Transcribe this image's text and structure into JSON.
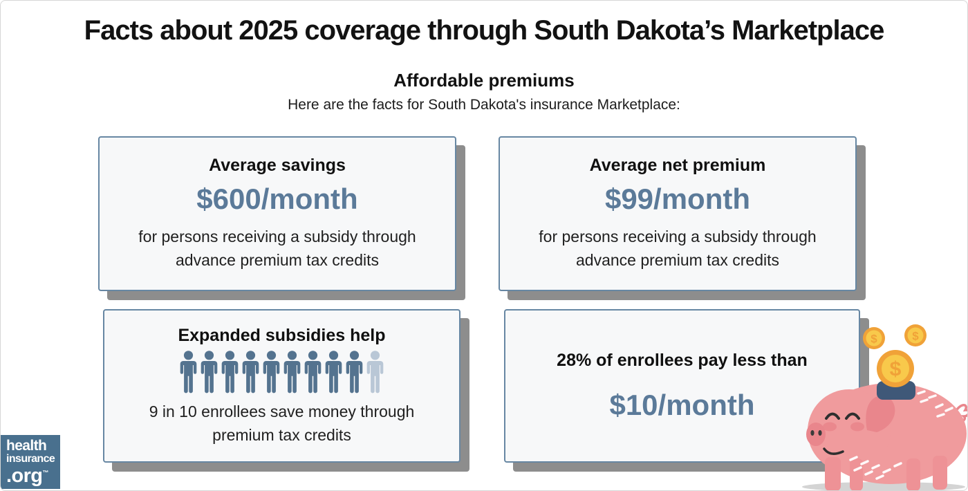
{
  "header": {
    "title": "Facts about 2025 coverage through South Dakota’s Marketplace",
    "section_heading": "Affordable premiums",
    "intro": "Here are the facts for South Dakota's insurance Marketplace:"
  },
  "cards": [
    {
      "heading": "Average savings",
      "stat": "$600/month",
      "description": "for persons receiving a subsidy through advance premium tax credits"
    },
    {
      "heading": "Average net premium",
      "stat": "$99/month",
      "description": "for persons receiving a subsidy through advance premium tax credits"
    },
    {
      "heading": "Expanded subsidies help",
      "pictograph": {
        "total_people": 10,
        "highlighted_people": 9
      },
      "description": "9 in 10 enrollees save money through premium tax credits"
    },
    {
      "heading": "28% of enrollees pay less than",
      "stat": "$10/month"
    }
  ],
  "logo": {
    "line1": "health",
    "line2": "insurance",
    "line3": ".org",
    "trademark": "™"
  },
  "illustration": {
    "name": "piggy-bank-with-coins",
    "coin_symbol": "$"
  },
  "colors": {
    "stat_blue": "#5b7a99",
    "card_border": "#6787a3",
    "card_background": "#f7f8f9",
    "card_shadow": "#8d8d8d",
    "person_highlight": "#54738f",
    "person_muted": "#b9c7d6",
    "logo_background": "#49708e",
    "pig_pink": "#f09b9d",
    "pig_dark_pink": "#e9868c",
    "coin_orange": "#f0a238",
    "coin_yellow": "#f8c94b",
    "slot_navy": "#3f5878"
  },
  "chart_data": {
    "type": "table",
    "title": "Facts about 2025 coverage through South Dakota’s Marketplace",
    "subtitle": "Affordable premiums",
    "series": [
      {
        "name": "Average savings",
        "value": 600,
        "unit": "$/month",
        "note": "for persons receiving a subsidy through advance premium tax credits"
      },
      {
        "name": "Average net premium",
        "value": 99,
        "unit": "$/month",
        "note": "for persons receiving a subsidy through advance premium tax credits"
      },
      {
        "name": "Enrollees who save money through premium tax credits",
        "value": "9 in 10",
        "pictograph": {
          "total": 10,
          "highlighted": 9
        }
      },
      {
        "name": "Enrollees paying less than $10/month",
        "value": "28%"
      }
    ]
  }
}
